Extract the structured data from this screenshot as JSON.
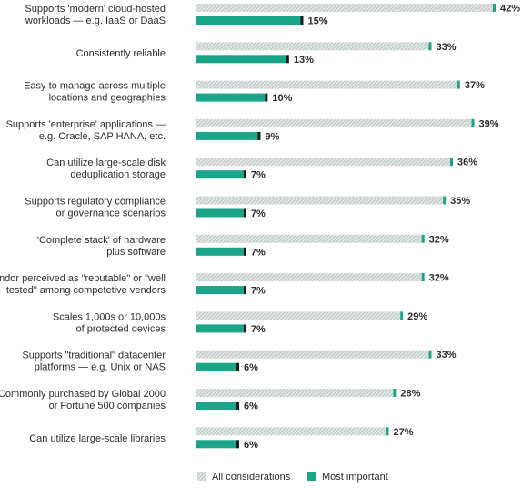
{
  "chart_data": {
    "type": "bar",
    "orientation": "horizontal",
    "categories": [
      [
        "Supports 'modern' cloud-hosted",
        "workloads — e.g. IaaS or DaaS"
      ],
      [
        "Consistently reliable"
      ],
      [
        "Easy to manage across multiple",
        "locations and geographies"
      ],
      [
        "Supports 'enterprise' applications —",
        "e.g. Oracle, SAP HANA, etc."
      ],
      [
        "Can utilize large-scale disk",
        "deduplication storage"
      ],
      [
        "Supports regulatory compliance",
        "or governance scenarios"
      ],
      [
        "'Complete stack' of hardware",
        "plus software"
      ],
      [
        "Vendor perceived as \"reputable\" or \"well",
        "tested\" among competetive vendors"
      ],
      [
        "Scales 1,000s or 10,000s",
        "of protected devices"
      ],
      [
        "Supports \"traditional\" datacenter",
        "platforms — e.g. Unix or NAS"
      ],
      [
        "Commonly purchased by Global 2000",
        "or Fortune 500 companies"
      ],
      [
        "Can utilize large-scale libraries"
      ]
    ],
    "series": [
      {
        "name": "All considerations",
        "values": [
          42,
          33,
          37,
          39,
          36,
          35,
          32,
          32,
          29,
          33,
          28,
          27
        ],
        "labels": [
          "42%",
          "33%",
          "37%",
          "39%",
          "36%",
          "35%",
          "32%",
          "32%",
          "29%",
          "33%",
          "28%",
          "27%"
        ],
        "color": "#cfd8d5",
        "end_color": "#1aa589",
        "pattern": "hatched"
      },
      {
        "name": "Most important",
        "values": [
          15,
          13,
          10,
          9,
          7,
          7,
          7,
          7,
          7,
          6,
          6,
          6
        ],
        "labels": [
          "15%",
          "13%",
          "10%",
          "9%",
          "7%",
          "7%",
          "7%",
          "7%",
          "7%",
          "6%",
          "6%",
          "6%"
        ],
        "color": "#1aa589",
        "end_color": "#1a1a1a"
      }
    ],
    "xlim": [
      0,
      42
    ],
    "unit": "%",
    "grid": false,
    "legend_position": "bottom"
  }
}
